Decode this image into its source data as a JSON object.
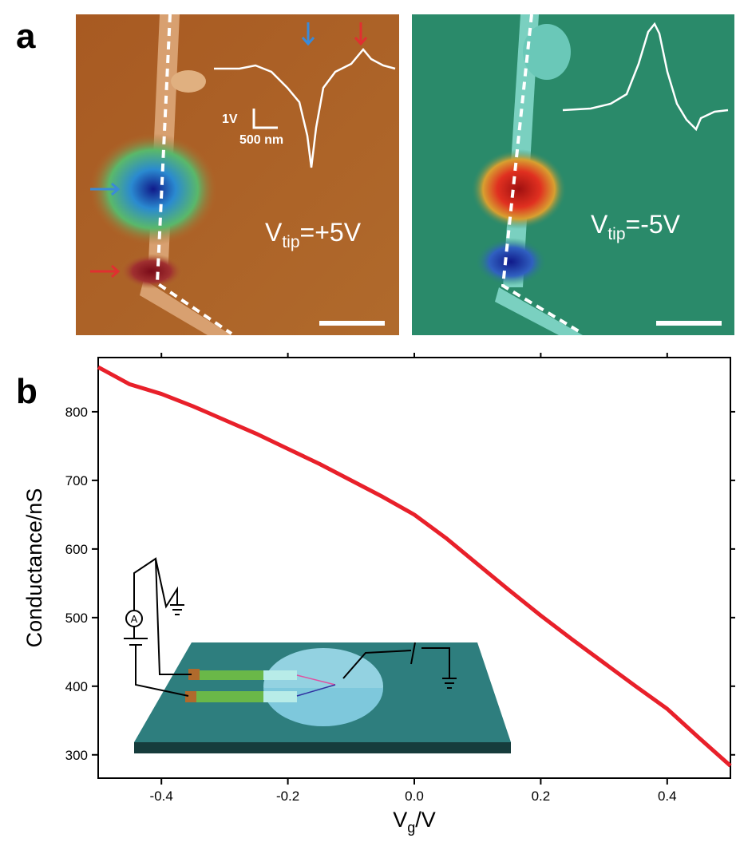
{
  "panel_a": {
    "label": "a",
    "left_image": {
      "scale_y": "1V",
      "scale_x": "500 nm",
      "tip_label": {
        "main": "V",
        "sub": "tip",
        "rest": "=+5V"
      }
    },
    "right_image": {
      "tip_label": {
        "main": "V",
        "sub": "tip",
        "rest": "=-5V"
      }
    }
  },
  "panel_b": {
    "label": "b",
    "inset_meter": "A"
  },
  "chart_data": {
    "type": "line",
    "x_label": {
      "main": "V",
      "sub": "g",
      "rest": "/V"
    },
    "y_label": "Conductance/nS",
    "x": [
      -0.5,
      -0.45,
      -0.4,
      -0.35,
      -0.3,
      -0.25,
      -0.2,
      -0.15,
      -0.1,
      -0.05,
      0.0,
      0.05,
      0.1,
      0.15,
      0.2,
      0.25,
      0.3,
      0.35,
      0.4,
      0.45,
      0.5
    ],
    "series": [
      {
        "color": "#e8202a",
        "values": [
          865,
          840,
          826,
          808,
          788,
          768,
          746,
          724,
          700,
          676,
          650,
          616,
          578,
          540,
          503,
          468,
          434,
          400,
          367,
          325,
          284
        ]
      }
    ],
    "xlim": [
      -0.5,
      0.5
    ],
    "xticks": [
      {
        "value": -0.4,
        "label": "-0.4"
      },
      {
        "value": -0.2,
        "label": "-0.2"
      },
      {
        "value": 0,
        "label": "0.0"
      },
      {
        "value": 0.2,
        "label": "0.2"
      },
      {
        "value": 0.4,
        "label": "0.4"
      }
    ],
    "ylim": [
      266,
      879
    ],
    "yticks": [
      300,
      400,
      500,
      600,
      700,
      800
    ]
  }
}
